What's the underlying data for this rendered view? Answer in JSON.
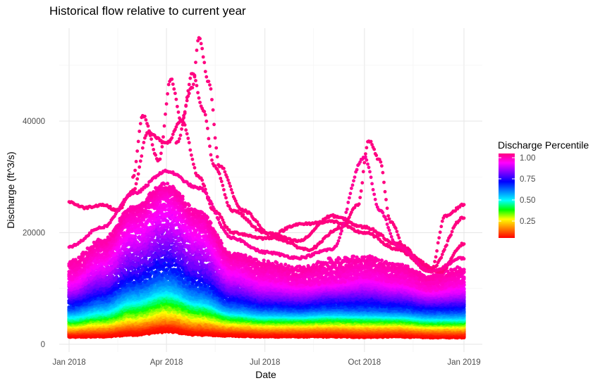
{
  "chart_data": {
    "type": "scatter",
    "title": "Historical flow relative to current year",
    "xlabel": "Date",
    "ylabel": "Discharge (ft^3/s)",
    "x_ticks": [
      "Jan 2018",
      "Apr 2018",
      "Jul 2018",
      "Oct 2018",
      "Jan 2019"
    ],
    "x_range": [
      "2018-01-01",
      "2019-01-01"
    ],
    "y_ticks": [
      0,
      20000,
      40000
    ],
    "ylim": [
      0,
      56000
    ],
    "grid": true,
    "legend": {
      "title": "Discharge Percentile",
      "position": "right",
      "ticks": [
        0.25,
        0.5,
        0.75,
        1.0
      ],
      "tick_labels": [
        "0.25",
        "0.50",
        "0.75",
        "1.00"
      ],
      "range": [
        0,
        1
      ],
      "colors": [
        "#ff0000",
        "#ff8000",
        "#ffff00",
        "#00ff00",
        "#00ffff",
        "#0080ff",
        "#0000ff",
        "#8000ff",
        "#ff00ff",
        "#ff0080"
      ]
    },
    "percentile_curves": [
      {
        "percentile": 0.02,
        "points": [
          [
            "2018-01-01",
            1900
          ],
          [
            "2018-02-01",
            2000
          ],
          [
            "2018-03-01",
            2500
          ],
          [
            "2018-04-01",
            3300
          ],
          [
            "2018-05-01",
            2500
          ],
          [
            "2018-06-01",
            2200
          ],
          [
            "2018-07-01",
            2000
          ],
          [
            "2018-08-01",
            2000
          ],
          [
            "2018-09-01",
            2000
          ],
          [
            "2018-10-01",
            1900
          ],
          [
            "2018-11-01",
            2000
          ],
          [
            "2018-12-01",
            1800
          ],
          [
            "2019-01-01",
            1800
          ]
        ]
      },
      {
        "percentile": 0.1,
        "points": [
          [
            "2018-01-01",
            2500
          ],
          [
            "2018-02-01",
            2800
          ],
          [
            "2018-03-01",
            3500
          ],
          [
            "2018-04-01",
            4200
          ],
          [
            "2018-05-01",
            3400
          ],
          [
            "2018-06-01",
            2900
          ],
          [
            "2018-07-01",
            2700
          ],
          [
            "2018-08-01",
            2700
          ],
          [
            "2018-09-01",
            2800
          ],
          [
            "2018-10-01",
            2700
          ],
          [
            "2018-11-01",
            2700
          ],
          [
            "2018-12-01",
            2500
          ],
          [
            "2019-01-01",
            2500
          ]
        ]
      },
      {
        "percentile": 0.25,
        "points": [
          [
            "2018-01-01",
            3500
          ],
          [
            "2018-02-01",
            4000
          ],
          [
            "2018-03-01",
            5000
          ],
          [
            "2018-04-01",
            6200
          ],
          [
            "2018-05-01",
            5000
          ],
          [
            "2018-06-01",
            4000
          ],
          [
            "2018-07-01",
            3700
          ],
          [
            "2018-08-01",
            3700
          ],
          [
            "2018-09-01",
            3800
          ],
          [
            "2018-10-01",
            3700
          ],
          [
            "2018-11-01",
            3700
          ],
          [
            "2018-12-01",
            3400
          ],
          [
            "2019-01-01",
            3400
          ]
        ]
      },
      {
        "percentile": 0.4,
        "points": [
          [
            "2018-01-01",
            4500
          ],
          [
            "2018-02-01",
            5300
          ],
          [
            "2018-03-01",
            7000
          ],
          [
            "2018-04-01",
            8500
          ],
          [
            "2018-05-01",
            6800
          ],
          [
            "2018-06-01",
            5200
          ],
          [
            "2018-07-01",
            4700
          ],
          [
            "2018-08-01",
            4700
          ],
          [
            "2018-09-01",
            4900
          ],
          [
            "2018-10-01",
            4800
          ],
          [
            "2018-11-01",
            4700
          ],
          [
            "2018-12-01",
            4300
          ],
          [
            "2019-01-01",
            4300
          ]
        ]
      },
      {
        "percentile": 0.5,
        "points": [
          [
            "2018-01-01",
            5500
          ],
          [
            "2018-02-01",
            6500
          ],
          [
            "2018-03-01",
            8500
          ],
          [
            "2018-04-01",
            10000
          ],
          [
            "2018-05-01",
            8000
          ],
          [
            "2018-06-01",
            6000
          ],
          [
            "2018-07-01",
            5500
          ],
          [
            "2018-08-01",
            5400
          ],
          [
            "2018-09-01",
            5600
          ],
          [
            "2018-10-01",
            5500
          ],
          [
            "2018-11-01",
            5400
          ],
          [
            "2018-12-01",
            5000
          ],
          [
            "2019-01-01",
            5000
          ]
        ]
      },
      {
        "percentile": 0.6,
        "points": [
          [
            "2018-01-01",
            6500
          ],
          [
            "2018-02-01",
            8000
          ],
          [
            "2018-03-01",
            10500
          ],
          [
            "2018-04-01",
            12500
          ],
          [
            "2018-05-01",
            10000
          ],
          [
            "2018-06-01",
            7200
          ],
          [
            "2018-07-01",
            6500
          ],
          [
            "2018-08-01",
            6300
          ],
          [
            "2018-09-01",
            6600
          ],
          [
            "2018-10-01",
            6500
          ],
          [
            "2018-11-01",
            6300
          ],
          [
            "2018-12-01",
            5900
          ],
          [
            "2019-01-01",
            6000
          ]
        ]
      },
      {
        "percentile": 0.75,
        "points": [
          [
            "2018-01-01",
            8500
          ],
          [
            "2018-02-01",
            10500
          ],
          [
            "2018-03-01",
            14000
          ],
          [
            "2018-04-01",
            17000
          ],
          [
            "2018-05-01",
            13500
          ],
          [
            "2018-06-01",
            9500
          ],
          [
            "2018-07-01",
            8300
          ],
          [
            "2018-08-01",
            8000
          ],
          [
            "2018-09-01",
            8600
          ],
          [
            "2018-10-01",
            8800
          ],
          [
            "2018-11-01",
            8300
          ],
          [
            "2018-12-01",
            7500
          ],
          [
            "2019-01-01",
            7800
          ]
        ]
      },
      {
        "percentile": 0.85,
        "points": [
          [
            "2018-01-01",
            10000
          ],
          [
            "2018-02-01",
            13000
          ],
          [
            "2018-03-01",
            18000
          ],
          [
            "2018-04-01",
            21500
          ],
          [
            "2018-05-01",
            17500
          ],
          [
            "2018-06-01",
            11500
          ],
          [
            "2018-07-01",
            10000
          ],
          [
            "2018-08-01",
            9500
          ],
          [
            "2018-09-01",
            10000
          ],
          [
            "2018-10-01",
            10500
          ],
          [
            "2018-11-01",
            9800
          ],
          [
            "2018-12-01",
            8800
          ],
          [
            "2019-01-01",
            9200
          ]
        ]
      },
      {
        "percentile": 0.92,
        "points": [
          [
            "2018-01-01",
            12000
          ],
          [
            "2018-02-01",
            16000
          ],
          [
            "2018-03-01",
            22000
          ],
          [
            "2018-04-01",
            26000
          ],
          [
            "2018-05-01",
            21000
          ],
          [
            "2018-06-01",
            14000
          ],
          [
            "2018-07-01",
            12000
          ],
          [
            "2018-08-01",
            11000
          ],
          [
            "2018-09-01",
            11500
          ],
          [
            "2018-10-01",
            12500
          ],
          [
            "2018-11-01",
            11500
          ],
          [
            "2018-12-01",
            10000
          ],
          [
            "2019-01-01",
            11000
          ]
        ]
      },
      {
        "percentile": 0.97,
        "points": [
          [
            "2018-01-01",
            15000
          ],
          [
            "2018-02-01",
            19000
          ],
          [
            "2018-03-01",
            25000
          ],
          [
            "2018-04-01",
            29000
          ],
          [
            "2018-05-01",
            24000
          ],
          [
            "2018-06-01",
            16500
          ],
          [
            "2018-07-01",
            15000
          ],
          [
            "2018-08-01",
            14000
          ],
          [
            "2018-09-01",
            15500
          ],
          [
            "2018-10-01",
            16000
          ],
          [
            "2018-11-01",
            14500
          ],
          [
            "2018-12-01",
            12500
          ],
          [
            "2019-01-01",
            14000
          ]
        ]
      }
    ],
    "extreme_years": [
      {
        "percentile": 1.0,
        "points": [
          [
            "2018-01-01",
            25500
          ],
          [
            "2018-01-15",
            24500
          ],
          [
            "2018-02-01",
            25000
          ],
          [
            "2018-02-15",
            24000
          ],
          [
            "2018-03-01",
            27500
          ],
          [
            "2018-03-15",
            38000
          ],
          [
            "2018-04-01",
            36000
          ],
          [
            "2018-04-15",
            40000
          ],
          [
            "2018-05-01",
            30000
          ],
          [
            "2018-05-15",
            24000
          ],
          [
            "2018-06-01",
            20000
          ],
          [
            "2018-07-01",
            19000
          ],
          [
            "2018-08-01",
            21500
          ],
          [
            "2018-09-01",
            22000
          ],
          [
            "2018-10-01",
            20000
          ],
          [
            "2018-11-01",
            17000
          ],
          [
            "2018-12-01",
            13000
          ],
          [
            "2018-12-15",
            23000
          ],
          [
            "2019-01-01",
            25000
          ]
        ]
      },
      {
        "percentile": 1.0,
        "points": [
          [
            "2018-03-01",
            30000
          ],
          [
            "2018-03-10",
            41000
          ],
          [
            "2018-03-25",
            33000
          ],
          [
            "2018-04-05",
            47500
          ],
          [
            "2018-04-15",
            40000
          ],
          [
            "2018-04-25",
            48500
          ],
          [
            "2018-05-05",
            42000
          ],
          [
            "2018-05-15",
            32000
          ],
          [
            "2018-06-01",
            24000
          ],
          [
            "2018-07-01",
            20000
          ],
          [
            "2018-08-01",
            18500
          ],
          [
            "2018-09-01",
            23000
          ],
          [
            "2018-10-01",
            21000
          ],
          [
            "2018-11-01",
            18000
          ],
          [
            "2018-12-01",
            13500
          ],
          [
            "2019-01-01",
            22800
          ]
        ]
      },
      {
        "percentile": 1.0,
        "points": [
          [
            "2018-04-10",
            36000
          ],
          [
            "2018-04-25",
            46000
          ],
          [
            "2018-05-01",
            55000
          ],
          [
            "2018-05-10",
            47000
          ],
          [
            "2018-05-20",
            32000
          ],
          [
            "2018-06-10",
            24000
          ],
          [
            "2018-07-10",
            19000
          ],
          [
            "2018-08-10",
            17000
          ],
          [
            "2018-09-10",
            21000
          ],
          [
            "2018-09-25",
            25000
          ],
          [
            "2018-10-05",
            36500
          ],
          [
            "2018-10-15",
            33000
          ],
          [
            "2018-10-25",
            22000
          ],
          [
            "2018-11-10",
            16000
          ],
          [
            "2018-12-10",
            13000
          ],
          [
            "2019-01-01",
            18000
          ]
        ]
      },
      {
        "percentile": 0.98,
        "points": [
          [
            "2018-01-01",
            17500
          ],
          [
            "2018-02-01",
            21000
          ],
          [
            "2018-03-01",
            27000
          ],
          [
            "2018-04-01",
            31000
          ],
          [
            "2018-05-01",
            28000
          ],
          [
            "2018-06-01",
            19000
          ],
          [
            "2018-07-01",
            16500
          ],
          [
            "2018-08-01",
            15500
          ],
          [
            "2018-09-01",
            17000
          ],
          [
            "2018-10-01",
            33500
          ],
          [
            "2018-10-15",
            24000
          ],
          [
            "2018-11-01",
            17500
          ],
          [
            "2018-12-01",
            13000
          ],
          [
            "2019-01-01",
            15500
          ]
        ]
      }
    ]
  }
}
